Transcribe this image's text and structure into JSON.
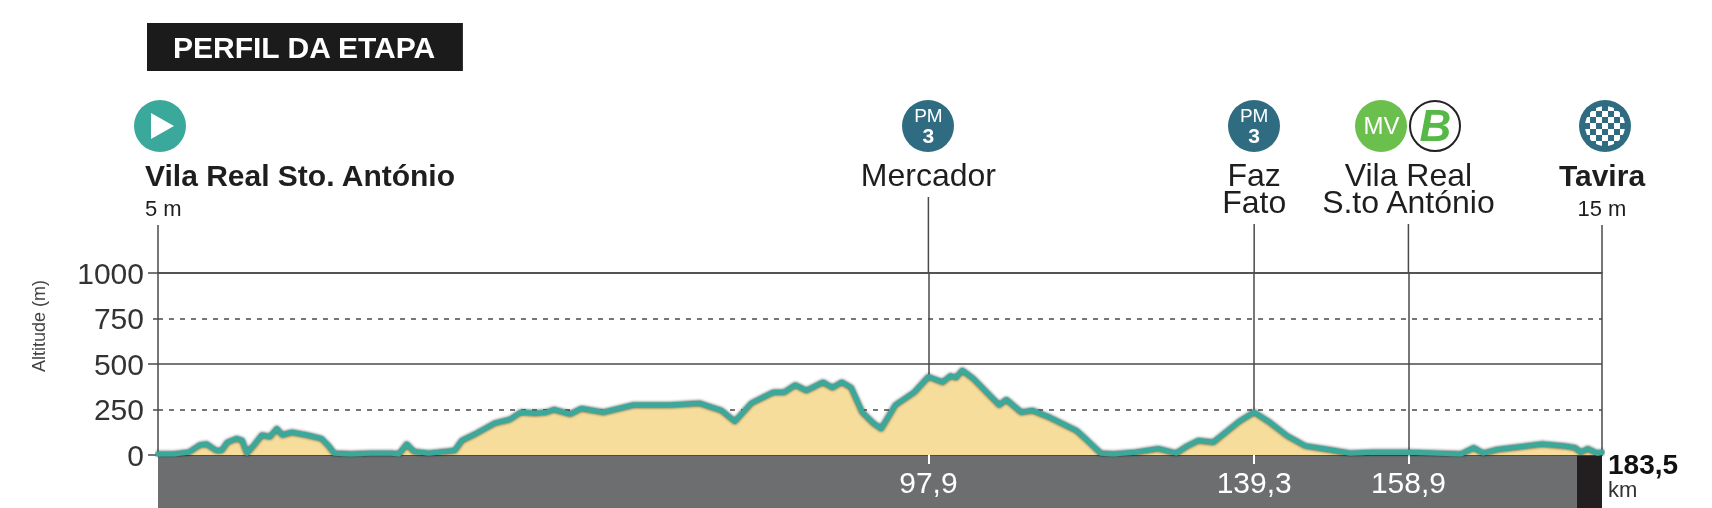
{
  "chart_data": {
    "type": "area",
    "title": "PERFIL DA ETAPA",
    "xlabel": "km",
    "ylabel": "Altitude (m)",
    "x": [
      0,
      2.0,
      3.9,
      5.3,
      6.2,
      7.4,
      8.1,
      8.8,
      10.0,
      10.7,
      11.3,
      12.3,
      13.2,
      14.2,
      15.1,
      15.8,
      17.0,
      18.9,
      20.8,
      21.7,
      22.4,
      24.5,
      26.9,
      29.7,
      30.6,
      31.6,
      32.5,
      34.4,
      37.7,
      38.6,
      40.5,
      42.8,
      44.7,
      46.1,
      48.0,
      49.4,
      50.3,
      52.4,
      53.8,
      56.6,
      60.4,
      65.1,
      68.8,
      70.2,
      71.6,
      73.3,
      75.4,
      78.2,
      79.6,
      81.0,
      82.4,
      84.5,
      85.7,
      86.9,
      88.1,
      89.5,
      90.9,
      91.9,
      93.7,
      96.1,
      97.9,
      99.7,
      100.7,
      101.4,
      102.2,
      103.6,
      106.9,
      107.8,
      109.7,
      111.1,
      113.4,
      116.7,
      118.1,
      119.8,
      121.4,
      124.2,
      127.1,
      129.4,
      130.8,
      132.2,
      134.1,
      137.4,
      139.3,
      141.1,
      143.5,
      145.8,
      148.7,
      151.5,
      154.3,
      158.9,
      165.6,
      167.2,
      168.4,
      170.2,
      173.1,
      175.9,
      178.7,
      180.1,
      180.8,
      181.7,
      182.9,
      183.5
    ],
    "values": [
      5,
      5,
      15,
      55,
      60,
      25,
      25,
      70,
      90,
      80,
      10,
      60,
      110,
      100,
      145,
      110,
      125,
      110,
      90,
      50,
      10,
      5,
      10,
      10,
      5,
      60,
      20,
      10,
      25,
      80,
      120,
      175,
      195,
      235,
      230,
      235,
      250,
      225,
      255,
      235,
      275,
      275,
      285,
      265,
      245,
      185,
      285,
      345,
      345,
      385,
      355,
      400,
      370,
      400,
      370,
      235,
      175,
      145,
      275,
      345,
      430,
      400,
      435,
      425,
      465,
      420,
      275,
      305,
      235,
      245,
      205,
      135,
      80,
      10,
      5,
      15,
      35,
      10,
      50,
      80,
      70,
      185,
      235,
      185,
      105,
      50,
      30,
      10,
      15,
      15,
      5,
      40,
      10,
      30,
      45,
      60,
      50,
      40,
      15,
      35,
      10,
      15
    ],
    "color": "#f6dd9b",
    "marker": "none",
    "xlim": [
      0,
      183.5
    ],
    "xticks": [
      {
        "value": 97.9,
        "label": "97,9"
      },
      {
        "value": 139.3,
        "label": "139,3"
      },
      {
        "value": 158.9,
        "label": "158,9"
      }
    ],
    "ylim": [
      0,
      1000
    ],
    "yticks": [
      0,
      250,
      500,
      750,
      1000
    ],
    "grid": true,
    "annotations": [
      "Vila Real Sto. António\n5 m",
      "Mercador",
      "Faz\nFato",
      "Vila Real\nS.to António",
      "Tavira\n15 m",
      "PM\n3",
      "PM\n3",
      "MV",
      "B",
      {
        "text": "183,5",
        "x": 183.5,
        "y": 0
      }
    ]
  }
}
